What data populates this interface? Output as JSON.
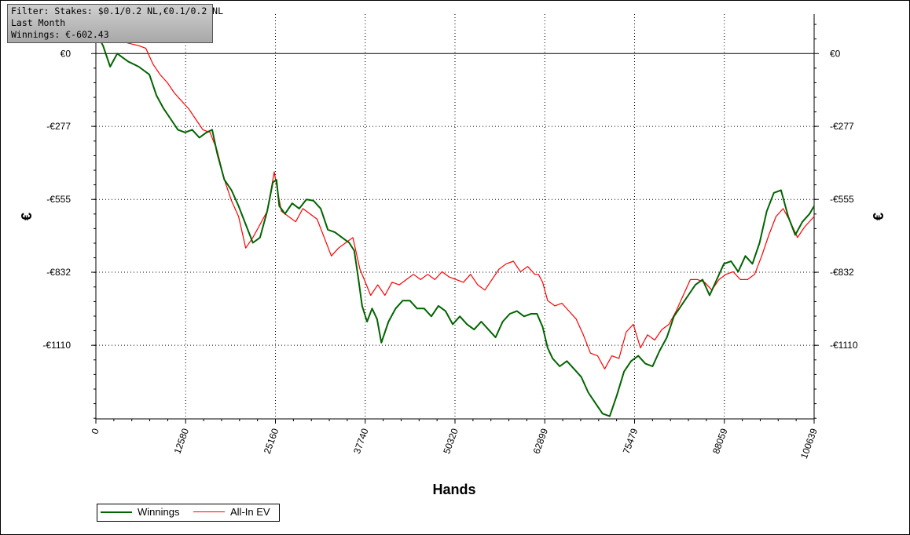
{
  "info": {
    "filter": "Filter: Stakes: $0.1/0.2 NL,€0.1/0.2 NL",
    "period": "Last Month",
    "winnings": "Winnings: €-602.43"
  },
  "chart_data": {
    "type": "line",
    "xlabel": "Hands",
    "ylabel": "€",
    "xlim": [
      0,
      100639
    ],
    "ylim": [
      -1390,
      150
    ],
    "x_ticks": [
      0,
      12580,
      25160,
      37740,
      50320,
      62899,
      75479,
      88059,
      100639
    ],
    "y_ticks": [
      0,
      -277,
      -555,
      -832,
      -1110
    ],
    "y_tick_labels": [
      "€0",
      "-€277",
      "-€555",
      "-€832",
      "-€1110"
    ],
    "grid": true,
    "legend_position": "bottom-left",
    "series": [
      {
        "name": "Winnings",
        "color": "#006400",
        "points": [
          [
            0,
            80
          ],
          [
            1000,
            30
          ],
          [
            2000,
            -50
          ],
          [
            3000,
            0
          ],
          [
            4500,
            -30
          ],
          [
            6000,
            -50
          ],
          [
            7500,
            -80
          ],
          [
            8500,
            -160
          ],
          [
            9500,
            -210
          ],
          [
            10500,
            -250
          ],
          [
            11500,
            -290
          ],
          [
            12500,
            -300
          ],
          [
            13500,
            -290
          ],
          [
            14500,
            -320
          ],
          [
            15500,
            -300
          ],
          [
            16300,
            -290
          ],
          [
            17000,
            -380
          ],
          [
            18000,
            -480
          ],
          [
            19000,
            -520
          ],
          [
            20000,
            -580
          ],
          [
            21000,
            -650
          ],
          [
            22000,
            -720
          ],
          [
            23000,
            -700
          ],
          [
            24000,
            -600
          ],
          [
            24800,
            -490
          ],
          [
            25300,
            -480
          ],
          [
            25700,
            -580
          ],
          [
            26500,
            -610
          ],
          [
            27500,
            -570
          ],
          [
            28500,
            -590
          ],
          [
            29500,
            -555
          ],
          [
            30500,
            -560
          ],
          [
            31500,
            -590
          ],
          [
            32500,
            -670
          ],
          [
            33500,
            -680
          ],
          [
            34500,
            -700
          ],
          [
            35500,
            -720
          ],
          [
            36200,
            -750
          ],
          [
            36800,
            -860
          ],
          [
            37300,
            -960
          ],
          [
            38000,
            -1020
          ],
          [
            38700,
            -970
          ],
          [
            39400,
            -1010
          ],
          [
            40000,
            -1100
          ],
          [
            41000,
            -1020
          ],
          [
            42000,
            -970
          ],
          [
            43000,
            -940
          ],
          [
            44000,
            -940
          ],
          [
            45000,
            -970
          ],
          [
            46000,
            -970
          ],
          [
            47000,
            -1000
          ],
          [
            48000,
            -960
          ],
          [
            49000,
            -980
          ],
          [
            50000,
            -1030
          ],
          [
            51000,
            -1000
          ],
          [
            52000,
            -1030
          ],
          [
            53000,
            -1050
          ],
          [
            54000,
            -1020
          ],
          [
            55000,
            -1050
          ],
          [
            56000,
            -1080
          ],
          [
            57000,
            -1020
          ],
          [
            58000,
            -990
          ],
          [
            59000,
            -980
          ],
          [
            60000,
            -1000
          ],
          [
            61000,
            -990
          ],
          [
            61800,
            -990
          ],
          [
            62600,
            -1040
          ],
          [
            63300,
            -1120
          ],
          [
            64000,
            -1160
          ],
          [
            65000,
            -1190
          ],
          [
            66000,
            -1170
          ],
          [
            67000,
            -1200
          ],
          [
            68000,
            -1230
          ],
          [
            69000,
            -1290
          ],
          [
            70000,
            -1330
          ],
          [
            71000,
            -1370
          ],
          [
            72000,
            -1380
          ],
          [
            73000,
            -1300
          ],
          [
            74000,
            -1210
          ],
          [
            75000,
            -1170
          ],
          [
            76000,
            -1150
          ],
          [
            77000,
            -1180
          ],
          [
            78000,
            -1190
          ],
          [
            79000,
            -1130
          ],
          [
            80000,
            -1080
          ],
          [
            81000,
            -1000
          ],
          [
            82000,
            -960
          ],
          [
            83000,
            -920
          ],
          [
            84000,
            -880
          ],
          [
            85000,
            -860
          ],
          [
            86000,
            -920
          ],
          [
            87000,
            -860
          ],
          [
            88000,
            -800
          ],
          [
            89000,
            -790
          ],
          [
            90000,
            -830
          ],
          [
            91000,
            -770
          ],
          [
            92000,
            -800
          ],
          [
            93000,
            -720
          ],
          [
            94000,
            -600
          ],
          [
            95000,
            -530
          ],
          [
            96000,
            -520
          ],
          [
            97000,
            -620
          ],
          [
            98000,
            -690
          ],
          [
            99000,
            -640
          ],
          [
            100000,
            -610
          ],
          [
            100639,
            -580
          ]
        ]
      },
      {
        "name": "All-In EV",
        "color": "#ff0000",
        "points": [
          [
            0,
            100
          ],
          [
            1500,
            80
          ],
          [
            3000,
            60
          ],
          [
            4500,
            40
          ],
          [
            6000,
            30
          ],
          [
            7000,
            20
          ],
          [
            8000,
            -40
          ],
          [
            9000,
            -80
          ],
          [
            10000,
            -110
          ],
          [
            11000,
            -150
          ],
          [
            12000,
            -180
          ],
          [
            13000,
            -210
          ],
          [
            14000,
            -250
          ],
          [
            15000,
            -290
          ],
          [
            16000,
            -300
          ],
          [
            17000,
            -370
          ],
          [
            18000,
            -480
          ],
          [
            19000,
            -560
          ],
          [
            20000,
            -620
          ],
          [
            21000,
            -740
          ],
          [
            22000,
            -700
          ],
          [
            23000,
            -650
          ],
          [
            24000,
            -600
          ],
          [
            25000,
            -450
          ],
          [
            25500,
            -530
          ],
          [
            26000,
            -600
          ],
          [
            27000,
            -620
          ],
          [
            28000,
            -640
          ],
          [
            29000,
            -590
          ],
          [
            30000,
            -610
          ],
          [
            31000,
            -630
          ],
          [
            32000,
            -700
          ],
          [
            33000,
            -770
          ],
          [
            34000,
            -740
          ],
          [
            35000,
            -720
          ],
          [
            36000,
            -700
          ],
          [
            37000,
            -820
          ],
          [
            37600,
            -860
          ],
          [
            38500,
            -920
          ],
          [
            39500,
            -880
          ],
          [
            40500,
            -920
          ],
          [
            41500,
            -870
          ],
          [
            42500,
            -880
          ],
          [
            43500,
            -860
          ],
          [
            44500,
            -840
          ],
          [
            45500,
            -860
          ],
          [
            46500,
            -840
          ],
          [
            47500,
            -860
          ],
          [
            48500,
            -830
          ],
          [
            49500,
            -850
          ],
          [
            50500,
            -860
          ],
          [
            51500,
            -870
          ],
          [
            52500,
            -840
          ],
          [
            53500,
            -880
          ],
          [
            54500,
            -900
          ],
          [
            55500,
            -860
          ],
          [
            56500,
            -820
          ],
          [
            57500,
            -800
          ],
          [
            58500,
            -790
          ],
          [
            59500,
            -830
          ],
          [
            60500,
            -810
          ],
          [
            61500,
            -840
          ],
          [
            62000,
            -840
          ],
          [
            62600,
            -870
          ],
          [
            63300,
            -940
          ],
          [
            64300,
            -960
          ],
          [
            65300,
            -950
          ],
          [
            66300,
            -980
          ],
          [
            67300,
            -1010
          ],
          [
            68300,
            -1070
          ],
          [
            69300,
            -1140
          ],
          [
            70300,
            -1150
          ],
          [
            71300,
            -1200
          ],
          [
            72300,
            -1150
          ],
          [
            73300,
            -1160
          ],
          [
            74300,
            -1060
          ],
          [
            75300,
            -1030
          ],
          [
            76300,
            -1120
          ],
          [
            77300,
            -1070
          ],
          [
            78300,
            -1090
          ],
          [
            79300,
            -1050
          ],
          [
            80300,
            -1030
          ],
          [
            81300,
            -980
          ],
          [
            82300,
            -920
          ],
          [
            83300,
            -860
          ],
          [
            84300,
            -860
          ],
          [
            85300,
            -870
          ],
          [
            86300,
            -900
          ],
          [
            87300,
            -860
          ],
          [
            88300,
            -840
          ],
          [
            89300,
            -830
          ],
          [
            90300,
            -860
          ],
          [
            91300,
            -860
          ],
          [
            92300,
            -840
          ],
          [
            93300,
            -770
          ],
          [
            94300,
            -690
          ],
          [
            95300,
            -620
          ],
          [
            96300,
            -590
          ],
          [
            97300,
            -640
          ],
          [
            98300,
            -700
          ],
          [
            99300,
            -660
          ],
          [
            100639,
            -620
          ]
        ]
      }
    ]
  }
}
